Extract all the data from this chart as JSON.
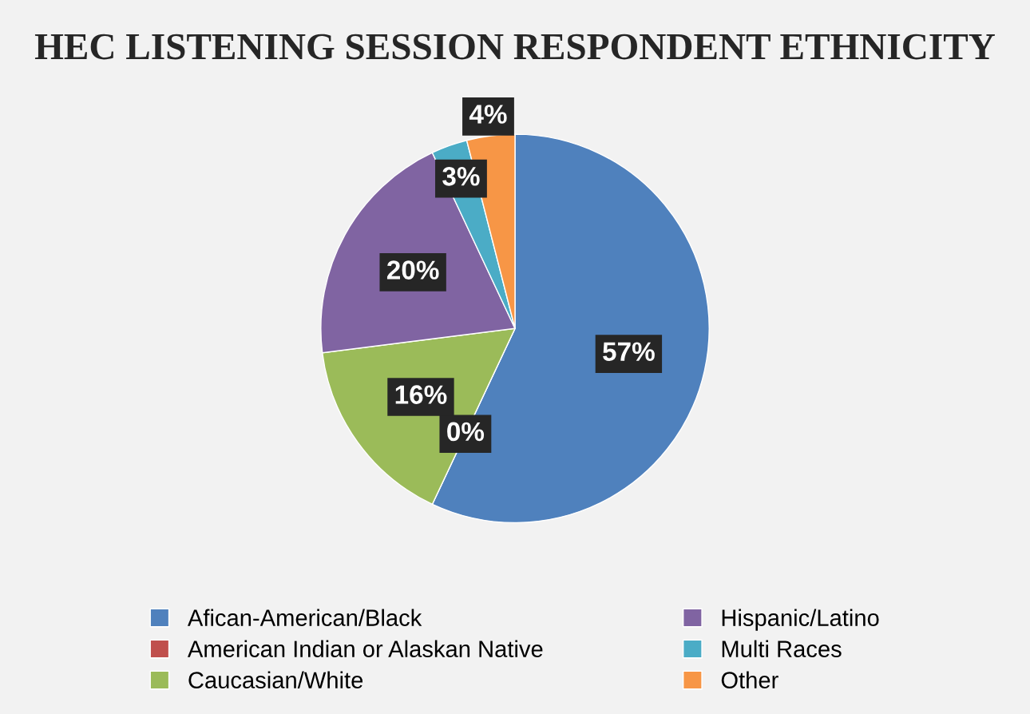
{
  "chart_data": {
    "type": "pie",
    "title": "HEC LISTENING SESSION RESPONDENT ETHNICITY",
    "categories": [
      "Afican-American/Black",
      "American Indian or Alaskan Native",
      "Caucasian/White",
      "Hispanic/Latino",
      "Multi Races",
      "Other"
    ],
    "values": [
      57,
      0,
      16,
      20,
      3,
      4
    ],
    "colors": [
      "#4f81bd",
      "#c0504d",
      "#9bbb59",
      "#8064a2",
      "#4bacc6",
      "#f79646"
    ],
    "value_labels": [
      "57%",
      "0%",
      "16%",
      "20%",
      "3%",
      "4%"
    ],
    "legend": "bottom"
  }
}
